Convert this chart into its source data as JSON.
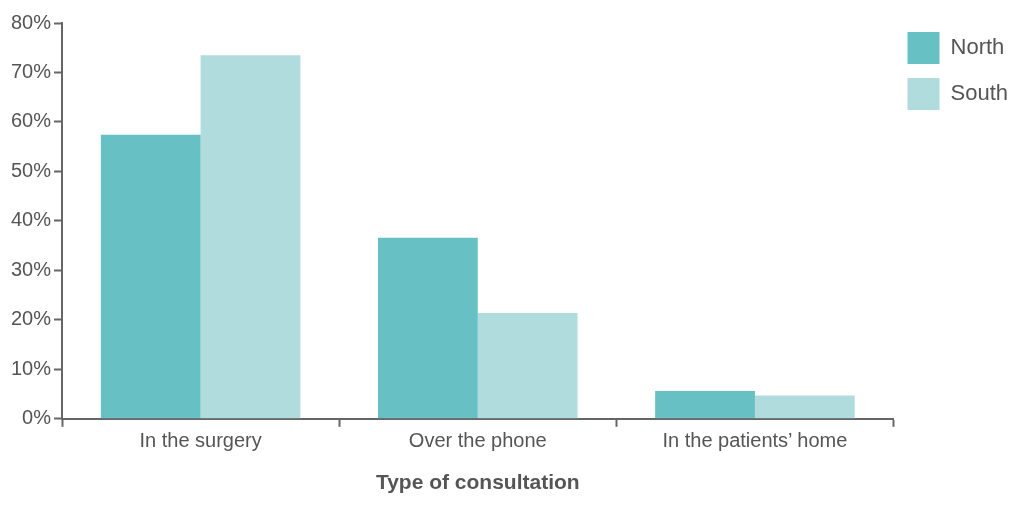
{
  "chart_data": {
    "type": "bar",
    "xlabel": "Type of consultation",
    "categories": [
      "In the surgery",
      "Over the phone",
      "In the patients’ home"
    ],
    "series": [
      {
        "name": "North",
        "color": "#66c0c4",
        "values": [
          57.4,
          36.6,
          5.6
        ]
      },
      {
        "name": "South",
        "color": "#b0dcdd",
        "values": [
          73.5,
          21.4,
          4.7
        ]
      }
    ],
    "ylim": [
      0,
      80
    ],
    "yticks": [
      {
        "value": 0,
        "label": "0%"
      },
      {
        "value": 10,
        "label": "10%"
      },
      {
        "value": 20,
        "label": "20%"
      },
      {
        "value": 30,
        "label": "30%"
      },
      {
        "value": 40,
        "label": "40%"
      },
      {
        "value": 50,
        "label": "50%"
      },
      {
        "value": 60,
        "label": "60%"
      },
      {
        "value": 70,
        "label": "70%"
      },
      {
        "value": 80,
        "label": "80%"
      }
    ],
    "grid": false,
    "legend": "top right"
  }
}
